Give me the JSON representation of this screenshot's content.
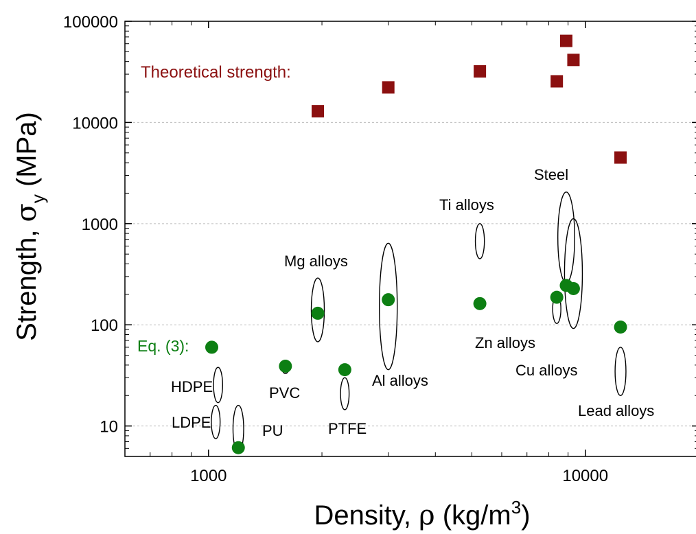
{
  "chart_data": {
    "type": "scatter",
    "xscale": "log",
    "yscale": "log",
    "xlim": [
      600,
      20000
    ],
    "ylim": [
      5,
      100000
    ],
    "grid": "horizontal dotted",
    "xlabel_main": "Density, ",
    "xlabel_symbol": "ρ",
    "xlabel_unit_open": " (kg/m",
    "xlabel_unit_exp": "3",
    "xlabel_unit_close": ")",
    "ylabel_main": "Strength, ",
    "ylabel_symbol": "σ",
    "ylabel_sub": "y",
    "ylabel_unit": " (MPa)",
    "xticks": [
      {
        "value": 1000,
        "label": "1000"
      },
      {
        "value": 10000,
        "label": "10000"
      }
    ],
    "yticks": [
      {
        "value": 10,
        "label": "10"
      },
      {
        "value": 100,
        "label": "100"
      },
      {
        "value": 1000,
        "label": "1000"
      },
      {
        "value": 10000,
        "label": "10000"
      },
      {
        "value": 100000,
        "label": "100000"
      }
    ],
    "series": [
      {
        "name": "Theoretical strength:",
        "marker": "square",
        "color": "#8b1010",
        "points": [
          {
            "x": 1950,
            "y": 12900
          },
          {
            "x": 3000,
            "y": 22200
          },
          {
            "x": 5250,
            "y": 32000
          },
          {
            "x": 8400,
            "y": 25500
          },
          {
            "x": 8900,
            "y": 64000
          },
          {
            "x": 9300,
            "y": 41500
          },
          {
            "x": 12400,
            "y": 4500
          }
        ]
      },
      {
        "name": "Eq. (3):",
        "marker": "circle",
        "color": "#0d7f13",
        "points": [
          {
            "x": 1020,
            "y": 60
          },
          {
            "x": 1200,
            "y": 6.1
          },
          {
            "x": 1600,
            "y": 39
          },
          {
            "x": 1950,
            "y": 130
          },
          {
            "x": 2300,
            "y": 36
          },
          {
            "x": 3000,
            "y": 177
          },
          {
            "x": 5250,
            "y": 162
          },
          {
            "x": 8400,
            "y": 187
          },
          {
            "x": 8900,
            "y": 245
          },
          {
            "x": 9300,
            "y": 228
          },
          {
            "x": 12400,
            "y": 95
          }
        ]
      }
    ],
    "materials": [
      {
        "label": "HDPE",
        "x": 1060,
        "ylo": 17,
        "yhi": 38
      },
      {
        "label": "LDPE",
        "x": 1045,
        "ylo": 7.5,
        "yhi": 16
      },
      {
        "label": "PU",
        "x": 1200,
        "ylo": 5.5,
        "yhi": 16
      },
      {
        "label": "PVC",
        "x": 1600,
        "ylo": 33,
        "yhi": 43
      },
      {
        "label": "PTFE",
        "x": 2300,
        "ylo": 14.5,
        "yhi": 30
      },
      {
        "label": "Mg alloys",
        "x": 1950,
        "ylo": 68,
        "yhi": 290
      },
      {
        "label": "Al alloys",
        "x": 3000,
        "ylo": 36,
        "yhi": 640
      },
      {
        "label": "Ti alloys",
        "x": 5250,
        "ylo": 450,
        "yhi": 1000
      },
      {
        "label": "Zn alloys",
        "x": 8400,
        "ylo": 103,
        "yhi": 200
      },
      {
        "label": "Steel",
        "x": 8900,
        "ylo": 260,
        "yhi": 2050
      },
      {
        "label": "Cu alloys",
        "x": 9300,
        "ylo": 92,
        "yhi": 1120
      },
      {
        "label": "Lead alloys",
        "x": 12400,
        "ylo": 20,
        "yhi": 60
      }
    ]
  }
}
